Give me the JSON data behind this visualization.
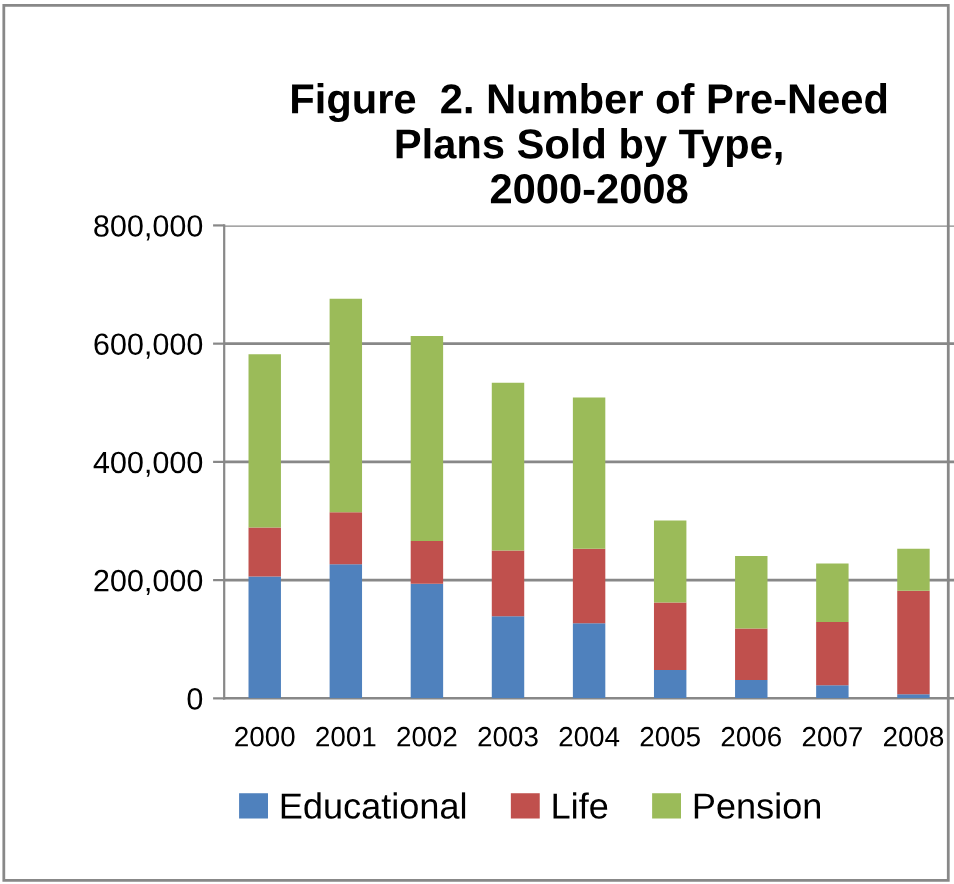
{
  "chart_data": {
    "type": "bar",
    "stacked": true,
    "title": "Figure  2. Number of Pre-Need\nPlans Sold by Type,\n2000-2008",
    "categories": [
      "2000",
      "2001",
      "2002",
      "2003",
      "2004",
      "2005",
      "2006",
      "2007",
      "2008"
    ],
    "series": [
      {
        "name": "Educational",
        "color": "#4f81bd",
        "values": [
          206000,
          227000,
          194000,
          139000,
          127000,
          48000,
          31000,
          22000,
          7000
        ]
      },
      {
        "name": "Life",
        "color": "#c0504d",
        "values": [
          83000,
          88000,
          72000,
          111000,
          126000,
          114000,
          87000,
          107000,
          175000
        ]
      },
      {
        "name": "Pension",
        "color": "#9bbb59",
        "values": [
          293000,
          361000,
          347000,
          284000,
          256000,
          139000,
          123000,
          99000,
          71000
        ]
      }
    ],
    "ylim": [
      0,
      800000
    ],
    "yticks": [
      {
        "value": 0,
        "label": "0"
      },
      {
        "value": 200000,
        "label": "200,000"
      },
      {
        "value": 400000,
        "label": "400,000"
      },
      {
        "value": 600000,
        "label": "600,000"
      },
      {
        "value": 800000,
        "label": "800,000"
      }
    ],
    "grid": "y",
    "legend": "bottom"
  }
}
